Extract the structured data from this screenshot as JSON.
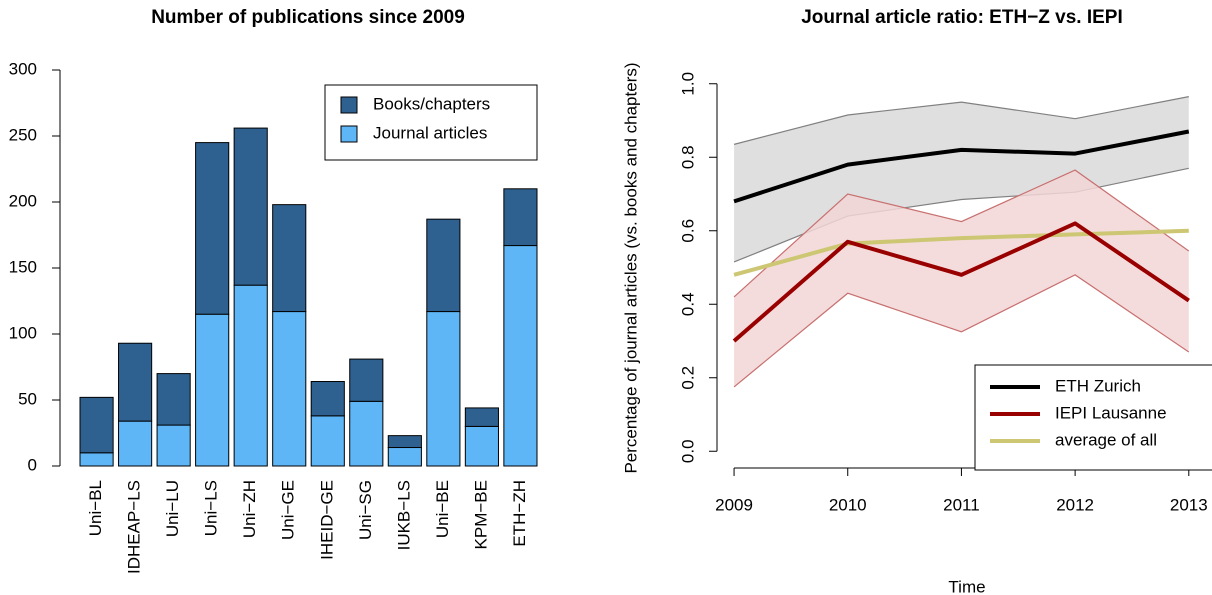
{
  "chart_data": [
    {
      "type": "stacked-bar",
      "title": "Number of publications since 2009",
      "categories": [
        "Uni−BL",
        "IDHEAP−LS",
        "Uni−LU",
        "Uni−LS",
        "Uni−ZH",
        "Uni−GE",
        "IHEID−GE",
        "Uni−SG",
        "IUKB−LS",
        "Uni−BE",
        "KPM−BE",
        "ETH−ZH"
      ],
      "series": [
        {
          "name": "Books/chapters",
          "color": "#2f6190",
          "values": [
            42,
            59,
            39,
            130,
            119,
            81,
            26,
            32,
            9,
            70,
            14,
            43
          ]
        },
        {
          "name": "Journal articles",
          "color": "#5fb6f7",
          "values": [
            10,
            34,
            31,
            115,
            137,
            117,
            38,
            49,
            14,
            117,
            30,
            167
          ]
        }
      ],
      "ylim": [
        0,
        300
      ],
      "yticks": [
        0,
        50,
        100,
        150,
        200,
        250,
        300
      ],
      "legend": "top-right"
    },
    {
      "type": "line",
      "title": "Journal article ratio: ETH−Z vs. IEPI",
      "x_label": "Time",
      "y_label": "Percentage of journal articles (vs. books and chapters)",
      "x": [
        2009,
        2010,
        2011,
        2012,
        2013
      ],
      "series": [
        {
          "name": "ETH Zurich",
          "color": "#000000",
          "values": [
            0.68,
            0.78,
            0.82,
            0.81,
            0.87
          ],
          "lower": [
            0.515,
            0.64,
            0.685,
            0.705,
            0.77
          ],
          "upper": [
            0.835,
            0.915,
            0.95,
            0.905,
            0.965
          ],
          "band_color": "#d9d9d9",
          "band_edge": "#808080"
        },
        {
          "name": "IEPI Lausanne",
          "color": "#990000",
          "values": [
            0.3,
            0.57,
            0.48,
            0.62,
            0.41
          ],
          "lower": [
            0.175,
            0.43,
            0.325,
            0.48,
            0.27
          ],
          "upper": [
            0.42,
            0.7,
            0.625,
            0.765,
            0.545
          ],
          "band_color": "#f2d6d6",
          "band_edge": "#c87070"
        },
        {
          "name": "average of all",
          "color": "#cdc673",
          "values": [
            0.48,
            0.565,
            0.58,
            0.59,
            0.6
          ]
        }
      ],
      "xlim": [
        2008.85,
        2013.38
      ],
      "xticks": [
        2009,
        2010,
        2011,
        2012,
        2013
      ],
      "ylim": [
        -0.1,
        1.1
      ],
      "yticks": [
        {
          "value": 0,
          "label": "0.0"
        },
        {
          "value": 0.2,
          "label": "0.2"
        },
        {
          "value": 0.4,
          "label": "0.4"
        },
        {
          "value": 0.6,
          "label": "0.6"
        },
        {
          "value": 0.8,
          "label": "0.8"
        },
        {
          "value": 1,
          "label": "1.0"
        }
      ],
      "legend": "bottom-right"
    }
  ]
}
